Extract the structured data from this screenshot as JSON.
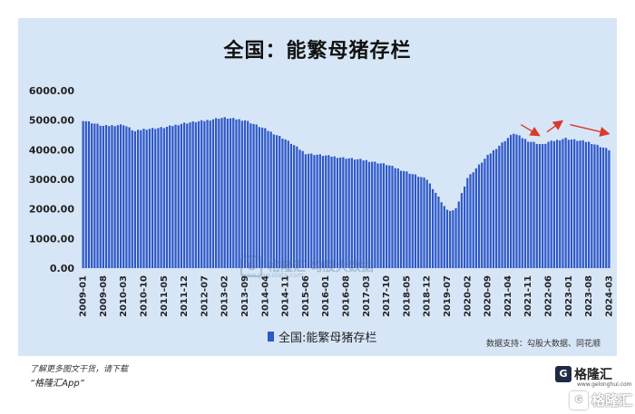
{
  "chart_data": {
    "type": "bar",
    "title": "全国：能繁母猪存栏",
    "legend": "全国:能繁母猪存栏",
    "yticks": [
      "0.00",
      "1000.00",
      "2000.00",
      "3000.00",
      "4000.00",
      "5000.00",
      "6000.00"
    ],
    "ylim": [
      0,
      6000
    ],
    "xticks": [
      "2009-01",
      "2009-08",
      "2010-03",
      "2010-10",
      "2011-05",
      "2011-12",
      "2012-07",
      "2013-02",
      "2013-09",
      "2014-04",
      "2014-11",
      "2015-06",
      "2016-01",
      "2016-08",
      "2017-03",
      "2017-10",
      "2018-05",
      "2018-12",
      "2019-07",
      "2020-02",
      "2020-09",
      "2021-04",
      "2021-11",
      "2022-06",
      "2023-01",
      "2023-08",
      "2024-03"
    ],
    "legend_position": "bottom",
    "series_color": "#2f58c8",
    "keypoints": [
      [
        "2009-01",
        5000
      ],
      [
        "2009-08",
        4800
      ],
      [
        "2010-03",
        4850
      ],
      [
        "2010-07",
        4620
      ],
      [
        "2010-10",
        4700
      ],
      [
        "2011-05",
        4750
      ],
      [
        "2011-12",
        4900
      ],
      [
        "2012-07",
        4980
      ],
      [
        "2012-12",
        5070
      ],
      [
        "2013-02",
        5080
      ],
      [
        "2013-09",
        5000
      ],
      [
        "2014-04",
        4700
      ],
      [
        "2014-11",
        4350
      ],
      [
        "2015-06",
        3880
      ],
      [
        "2016-01",
        3800
      ],
      [
        "2016-08",
        3720
      ],
      [
        "2017-03",
        3640
      ],
      [
        "2017-10",
        3500
      ],
      [
        "2018-05",
        3250
      ],
      [
        "2018-12",
        3000
      ],
      [
        "2019-04",
        2400
      ],
      [
        "2019-07",
        1950
      ],
      [
        "2019-09",
        1950
      ],
      [
        "2019-10",
        2000
      ],
      [
        "2020-02",
        3050
      ],
      [
        "2020-09",
        3800
      ],
      [
        "2021-04",
        4400
      ],
      [
        "2021-06",
        4560
      ],
      [
        "2021-11",
        4300
      ],
      [
        "2022-04",
        4170
      ],
      [
        "2022-06",
        4260
      ],
      [
        "2022-12",
        4390
      ],
      [
        "2023-01",
        4360
      ],
      [
        "2023-08",
        4260
      ],
      [
        "2024-03",
        4000
      ]
    ]
  },
  "source_label": "数据支持：勾股大数据、同花顺",
  "watermark_text": "格隆汇  勾股大数据",
  "watermark_url": "www.gogudata.com",
  "footer": {
    "line1": "了解更多图文干货，请下载",
    "line2": "“格隆汇App”"
  },
  "logo_small_text": "格隆汇",
  "logo_small_url": "www.gelonghui.com",
  "logo_big_text": "格隆汇"
}
